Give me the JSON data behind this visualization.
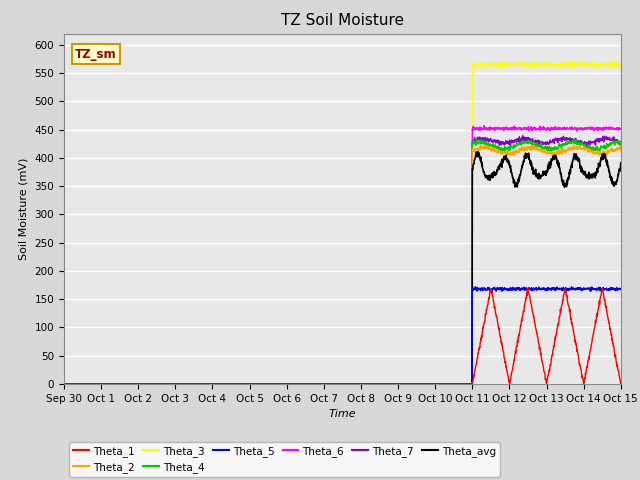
{
  "title": "TZ Soil Moisture",
  "xlabel": "Time",
  "ylabel": "Soil Moisture (mV)",
  "ylim": [
    0,
    620
  ],
  "yticks": [
    0,
    50,
    100,
    150,
    200,
    250,
    300,
    350,
    400,
    450,
    500,
    550,
    600
  ],
  "background_color": "#d8d8d8",
  "plot_bg_color": "#e8e8e8",
  "legend_box_color": "#ffffcc",
  "legend_box_border": "#cc9900",
  "title_fontsize": 11,
  "axis_fontsize": 8,
  "tick_fontsize": 7.5,
  "series": {
    "Theta_1": {
      "color": "#ff0000",
      "lw": 1.0
    },
    "Theta_2": {
      "color": "#ffa500",
      "lw": 1.0
    },
    "Theta_3": {
      "color": "#ffff00",
      "lw": 1.0
    },
    "Theta_4": {
      "color": "#00cc00",
      "lw": 1.0
    },
    "Theta_5": {
      "color": "#0000ff",
      "lw": 1.0
    },
    "Theta_6": {
      "color": "#ff00ff",
      "lw": 1.0
    },
    "Theta_7": {
      "color": "#8800cc",
      "lw": 1.0
    },
    "Theta_avg": {
      "color": "#000000",
      "lw": 1.2
    }
  },
  "x_tick_labels": [
    "Sep 30",
    "Oct 1",
    "Oct 2",
    "Oct 3",
    "Oct 4",
    "Oct 5",
    "Oct 6",
    "Oct 7",
    "Oct 8",
    "Oct 9",
    "Oct 10",
    "Oct 11",
    "Oct 12",
    "Oct 13",
    "Oct 14",
    "Oct 15"
  ],
  "x_tick_positions": [
    0,
    1,
    2,
    3,
    4,
    5,
    6,
    7,
    8,
    9,
    10,
    11,
    12,
    13,
    14,
    15
  ],
  "jump_day": 11.0,
  "theta1_period": 1.0,
  "theta1_peak": 170,
  "theta2_val": 413,
  "theta3_val": 565,
  "theta4_val": 422,
  "theta5_val": 168,
  "theta6_val": 452,
  "theta7_val": 430,
  "theta_avg_base": 380,
  "theta_avg_wave_amp": 20,
  "theta_avg_wave_freq": 1.5
}
